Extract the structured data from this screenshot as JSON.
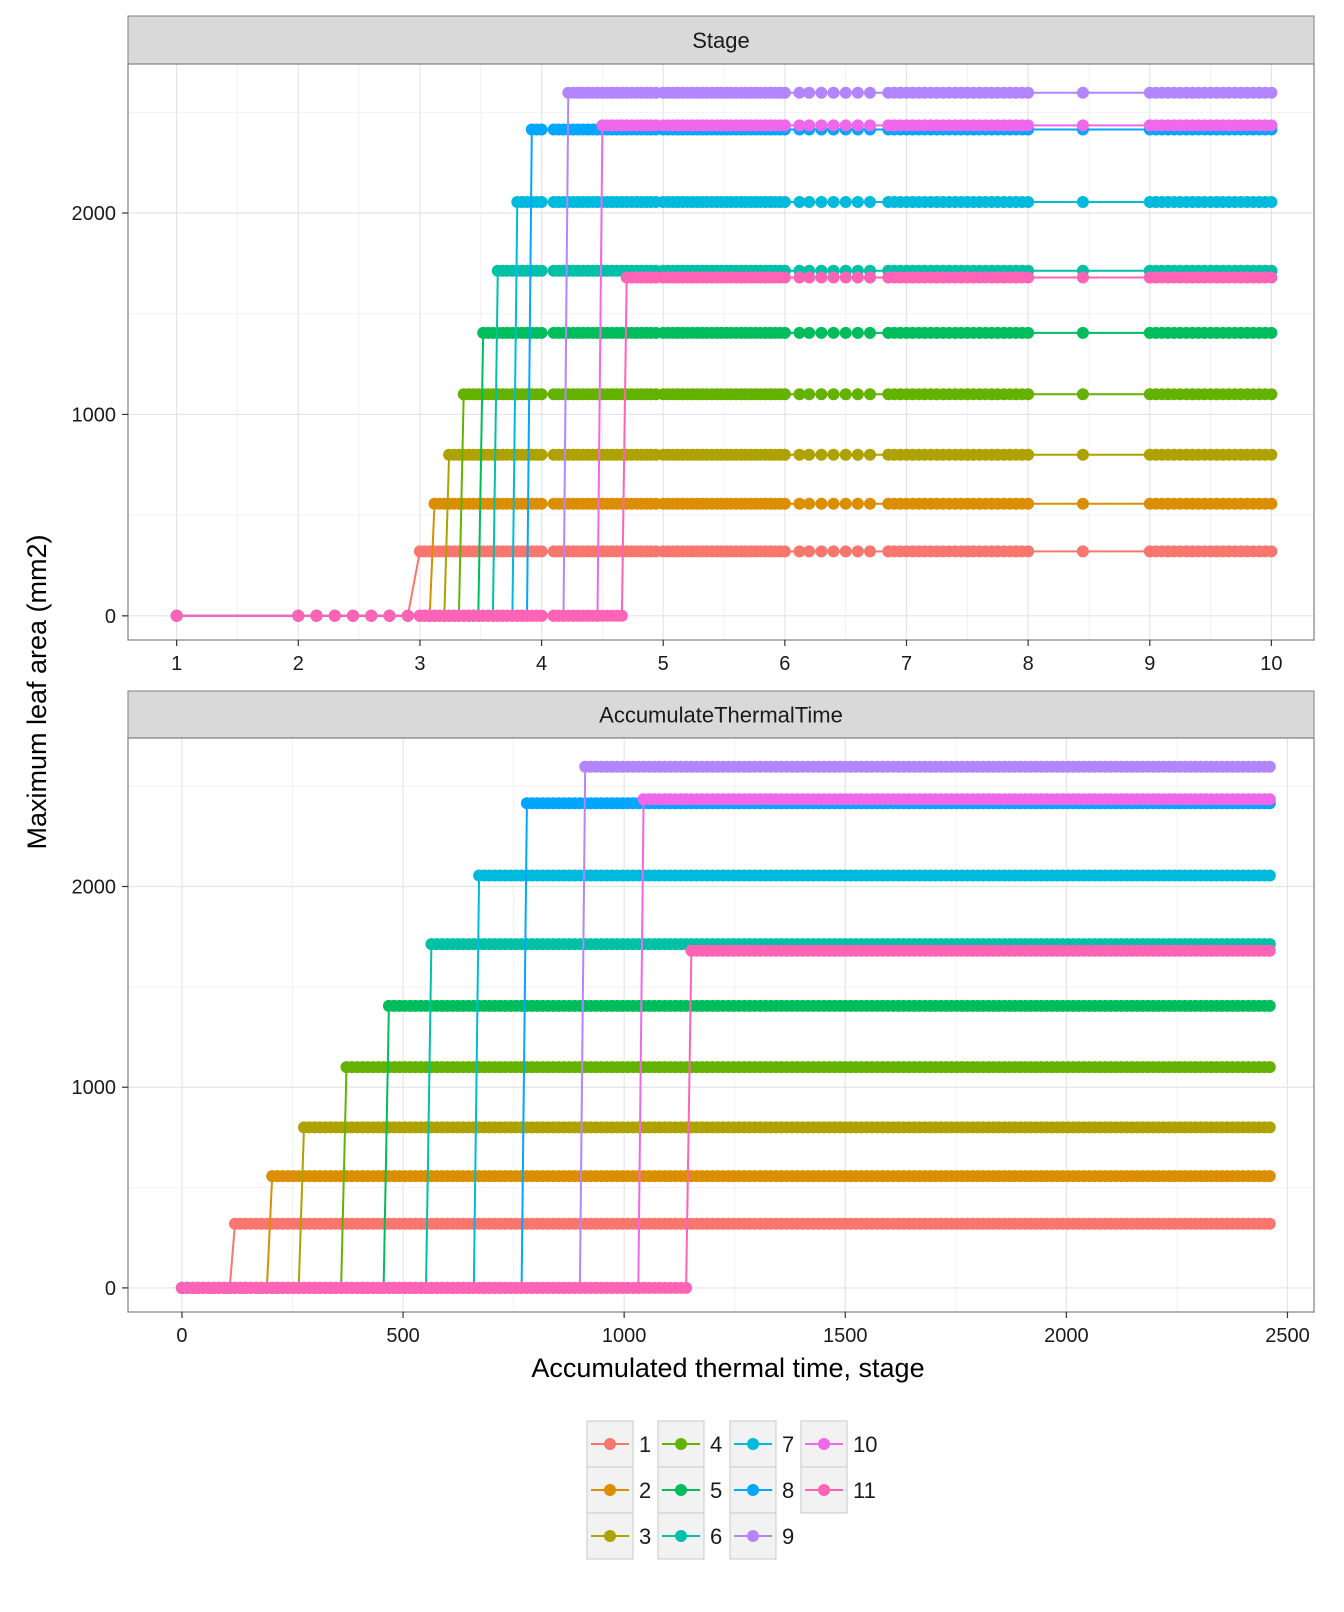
{
  "figure": {
    "ylabel": "Maximum leaf area (mm2)",
    "xlabel": "Accumulated thermal time, stage"
  },
  "legend": [
    {
      "name": "1",
      "color": "#F8766D"
    },
    {
      "name": "2",
      "color": "#DB8E00"
    },
    {
      "name": "3",
      "color": "#AEA200"
    },
    {
      "name": "4",
      "color": "#64B200"
    },
    {
      "name": "5",
      "color": "#00BD5C"
    },
    {
      "name": "6",
      "color": "#00C1A7"
    },
    {
      "name": "7",
      "color": "#00BADE"
    },
    {
      "name": "8",
      "color": "#00A6FF"
    },
    {
      "name": "9",
      "color": "#B385FF"
    },
    {
      "name": "10",
      "color": "#EF67EB"
    },
    {
      "name": "11",
      "color": "#FF63B6"
    }
  ],
  "chart_data": [
    {
      "type": "line",
      "title": "Stage",
      "xlim": [
        0.6,
        10.35
      ],
      "ylim": [
        -120,
        2740
      ],
      "xticks": [
        1,
        2,
        3,
        4,
        5,
        6,
        7,
        8,
        9,
        10
      ],
      "yticks": [
        0,
        1000,
        2000
      ],
      "grid": true,
      "series": [
        {
          "name": "1",
          "switch_x": 2.97,
          "plateau": 320
        },
        {
          "name": "2",
          "switch_x": 3.12,
          "plateau": 557
        },
        {
          "name": "3",
          "switch_x": 3.23,
          "plateau": 800
        },
        {
          "name": "4",
          "switch_x": 3.36,
          "plateau": 1100
        },
        {
          "name": "5",
          "switch_x": 3.49,
          "plateau": 1405
        },
        {
          "name": "6",
          "switch_x": 3.63,
          "plateau": 1713
        },
        {
          "name": "7",
          "switch_x": 3.77,
          "plateau": 2055
        },
        {
          "name": "8",
          "switch_x": 3.92,
          "plateau": 2415
        },
        {
          "name": "9",
          "switch_x": 4.22,
          "plateau": 2597
        },
        {
          "name": "10",
          "switch_x": 4.47,
          "plateau": 2435
        },
        {
          "name": "11",
          "switch_x": 4.7,
          "plateau": 1680
        }
      ],
      "x_samples": [
        1,
        2,
        2.15,
        2.3,
        2.45,
        2.6,
        2.75,
        2.9,
        3.0,
        3.04,
        3.08,
        3.12,
        3.16,
        3.2,
        3.24,
        3.28,
        3.32,
        3.36,
        3.4,
        3.44,
        3.48,
        3.52,
        3.56,
        3.6,
        3.64,
        3.68,
        3.72,
        3.76,
        3.8,
        3.84,
        3.88,
        3.92,
        3.96,
        4.0,
        4.1,
        4.14,
        4.18,
        4.22,
        4.26,
        4.3,
        4.34,
        4.38,
        4.42,
        4.46,
        4.5,
        4.54,
        4.58,
        4.62,
        4.66,
        4.7,
        4.74,
        4.78,
        4.82,
        4.86,
        4.9,
        4.94,
        5.0,
        5.04,
        5.08,
        5.12,
        5.16,
        5.2,
        5.24,
        5.28,
        5.32,
        5.36,
        5.4,
        5.44,
        5.48,
        5.52,
        5.56,
        5.6,
        5.64,
        5.68,
        5.72,
        5.76,
        5.8,
        5.84,
        5.88,
        5.92,
        5.96,
        6.0,
        6.12,
        6.2,
        6.3,
        6.4,
        6.5,
        6.6,
        6.7,
        6.85,
        6.9,
        6.95,
        7.0,
        7.05,
        7.1,
        7.15,
        7.2,
        7.25,
        7.3,
        7.35,
        7.4,
        7.45,
        7.5,
        7.55,
        7.6,
        7.65,
        7.7,
        7.75,
        7.8,
        7.85,
        7.9,
        7.95,
        8.0,
        8.45,
        9.0,
        9.05,
        9.1,
        9.15,
        9.2,
        9.25,
        9.3,
        9.35,
        9.4,
        9.45,
        9.5,
        9.55,
        9.6,
        9.65,
        9.7,
        9.75,
        9.8,
        9.85,
        9.9,
        9.95,
        10.0
      ]
    },
    {
      "type": "line",
      "title": "AccumulateThermalTime",
      "xlim": [
        -122,
        2560
      ],
      "ylim": [
        -120,
        2740
      ],
      "xticks": [
        0,
        500,
        1000,
        1500,
        2000,
        2500
      ],
      "yticks": [
        0,
        1000,
        2000
      ],
      "grid": true,
      "series": [
        {
          "name": "1",
          "switch_x": 120,
          "plateau": 320
        },
        {
          "name": "2",
          "switch_x": 195,
          "plateau": 557
        },
        {
          "name": "3",
          "switch_x": 275,
          "plateau": 800
        },
        {
          "name": "4",
          "switch_x": 365,
          "plateau": 1100
        },
        {
          "name": "5",
          "switch_x": 465,
          "plateau": 1405
        },
        {
          "name": "6",
          "switch_x": 560,
          "plateau": 1713
        },
        {
          "name": "7",
          "switch_x": 670,
          "plateau": 2055
        },
        {
          "name": "8",
          "switch_x": 780,
          "plateau": 2415
        },
        {
          "name": "9",
          "switch_x": 910,
          "plateau": 2597
        },
        {
          "name": "10",
          "switch_x": 1035,
          "plateau": 2435
        },
        {
          "name": "11",
          "switch_x": 1145,
          "plateau": 1680
        }
      ],
      "x_range": [
        0,
        2460
      ],
      "x_step": 12
    }
  ]
}
